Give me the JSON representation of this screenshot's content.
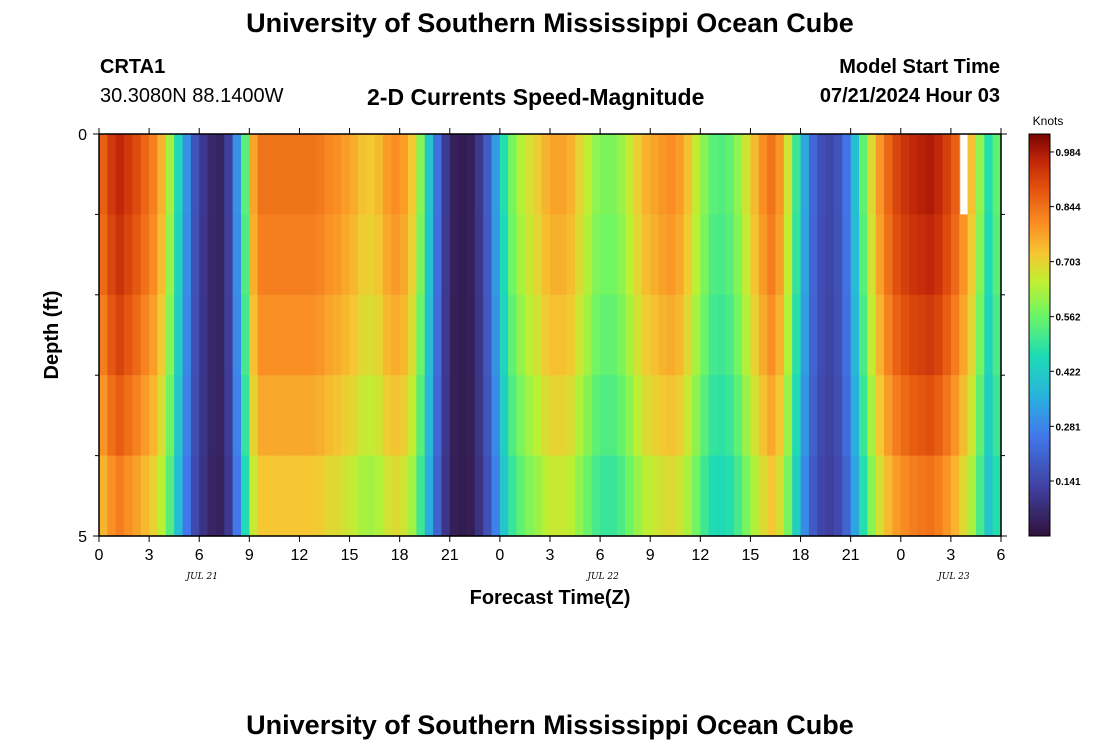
{
  "header": {
    "title": "University of Southern Mississippi Ocean Cube",
    "station_id": "CRTA1",
    "coordinates": "30.3080N  88.1400W",
    "chart_title": "2-D Currents Speed-Magnitude",
    "model_start_label": "Model Start Time",
    "model_start_value": "07/21/2024 Hour 03"
  },
  "footer": {
    "title": "University of Southern Mississippi Ocean Cube"
  },
  "chart_data": {
    "type": "heatmap",
    "title": "2-D Currents Speed-Magnitude",
    "xlabel": "Forecast Time(Z)",
    "ylabel": "Depth (ft)",
    "x_hours": [
      0,
      0.5,
      1,
      1.5,
      2,
      2.5,
      3,
      3.5,
      4,
      4.5,
      5,
      5.5,
      6,
      6.5,
      7,
      7.5,
      8,
      8.5,
      9,
      9.5,
      10,
      10.5,
      11,
      11.5,
      12,
      12.5,
      13,
      13.5,
      14,
      14.5,
      15,
      15.5,
      16,
      16.5,
      17,
      17.5,
      18,
      18.5,
      19,
      19.5,
      20,
      20.5,
      21,
      21.5,
      22,
      22.5,
      23,
      23.5,
      24,
      24.5,
      25,
      25.5,
      26,
      26.5,
      27,
      27.5,
      28,
      28.5,
      29,
      29.5,
      30,
      30.5,
      31,
      31.5,
      32,
      32.5,
      33,
      33.5,
      34,
      34.5,
      35,
      35.5,
      36,
      36.5,
      37,
      37.5,
      38,
      38.5,
      39,
      39.5,
      40,
      40.5,
      41,
      41.5,
      42,
      42.5,
      43,
      43.5,
      44,
      44.5,
      45,
      45.5,
      46,
      46.5,
      47,
      47.5,
      48,
      48.5,
      49,
      49.5,
      50,
      50.5,
      51,
      51.5,
      52,
      52.5,
      53,
      53.5
    ],
    "depth_bins_ft": [
      0,
      1,
      2,
      3,
      4,
      5
    ],
    "ylim": [
      5,
      0
    ],
    "xlim": [
      0,
      54
    ],
    "x_tick_labels": [
      "0",
      "3",
      "6",
      "9",
      "12",
      "15",
      "18",
      "21",
      "0",
      "3",
      "6",
      "9",
      "12",
      "15",
      "18",
      "21",
      "0",
      "3",
      "6"
    ],
    "y_tick_labels": [
      "0",
      "5"
    ],
    "date_labels": [
      "JUL 21",
      "JUL 22",
      "JUL 23"
    ],
    "surface_speed_knots": [
      0.87,
      0.93,
      0.96,
      0.93,
      0.9,
      0.86,
      0.82,
      0.75,
      0.62,
      0.45,
      0.3,
      0.17,
      0.1,
      0.06,
      0.05,
      0.12,
      0.3,
      0.54,
      0.77,
      0.84,
      0.84,
      0.84,
      0.84,
      0.84,
      0.84,
      0.84,
      0.83,
      0.81,
      0.8,
      0.78,
      0.76,
      0.73,
      0.72,
      0.74,
      0.78,
      0.8,
      0.78,
      0.72,
      0.59,
      0.41,
      0.24,
      0.11,
      0.04,
      0.03,
      0.04,
      0.1,
      0.19,
      0.32,
      0.47,
      0.58,
      0.64,
      0.68,
      0.71,
      0.75,
      0.77,
      0.77,
      0.75,
      0.7,
      0.65,
      0.6,
      0.58,
      0.58,
      0.61,
      0.66,
      0.71,
      0.75,
      0.77,
      0.79,
      0.8,
      0.78,
      0.73,
      0.66,
      0.59,
      0.54,
      0.53,
      0.55,
      0.6,
      0.67,
      0.74,
      0.8,
      0.84,
      0.79,
      0.67,
      0.5,
      0.34,
      0.22,
      0.16,
      0.14,
      0.17,
      0.25,
      0.39,
      0.55,
      0.69,
      0.79,
      0.86,
      0.91,
      0.94,
      0.96,
      0.97,
      0.98,
      0.96,
      0.92,
      0.87,
      0.81,
      0.73,
      0.6,
      0.47,
      0.55
    ],
    "depth_factors": [
      1.0,
      0.98,
      0.95,
      0.91,
      0.86
    ],
    "missing_cell": {
      "x_hour": 51.5,
      "depth_bin": 0
    },
    "colorbar": {
      "label": "Knots",
      "ticks": [
        "0.141",
        "0.281",
        "0.422",
        "0.562",
        "0.703",
        "0.844",
        "0.984"
      ],
      "tick_values": [
        0.141,
        0.281,
        0.422,
        0.562,
        0.703,
        0.844,
        0.984
      ],
      "range": [
        0.0,
        1.03
      ]
    }
  }
}
